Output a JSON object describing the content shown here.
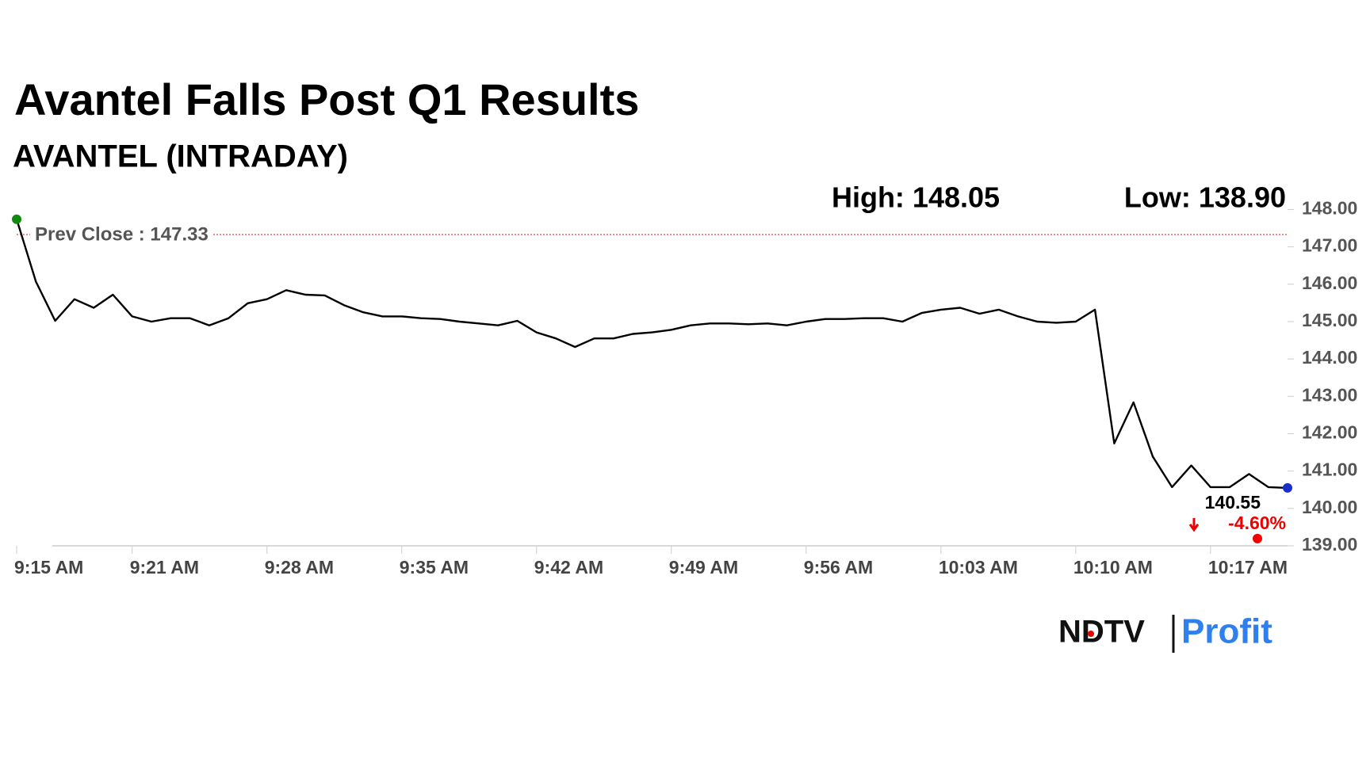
{
  "chart_data": {
    "type": "line",
    "title": "Avantel Falls Post Q1 Results",
    "subtitle": "AVANTEL (INTRADAY)",
    "high_label": "High: 148.05",
    "low_label": "Low: 138.90",
    "prev_close": 147.33,
    "prev_close_label": "Prev Close : 147.33",
    "last_label": "140.55",
    "change_label": "-4.60%",
    "x": [
      "9:15 AM",
      "9:16 AM",
      "9:17 AM",
      "9:18 AM",
      "9:19 AM",
      "9:20 AM",
      "9:21 AM",
      "9:22 AM",
      "9:23 AM",
      "9:24 AM",
      "9:25 AM",
      "9:26 AM",
      "9:27 AM",
      "9:28 AM",
      "9:29 AM",
      "9:30 AM",
      "9:31 AM",
      "9:32 AM",
      "9:33 AM",
      "9:34 AM",
      "9:35 AM",
      "9:36 AM",
      "9:37 AM",
      "9:38 AM",
      "9:39 AM",
      "9:40 AM",
      "9:41 AM",
      "9:42 AM",
      "9:43 AM",
      "9:44 AM",
      "9:45 AM",
      "9:46 AM",
      "9:47 AM",
      "9:48 AM",
      "9:49 AM",
      "9:50 AM",
      "9:51 AM",
      "9:52 AM",
      "9:53 AM",
      "9:54 AM",
      "9:55 AM",
      "9:56 AM",
      "9:57 AM",
      "9:58 AM",
      "9:59 AM",
      "10:00 AM",
      "10:01 AM",
      "10:02 AM",
      "10:03 AM",
      "10:04 AM",
      "10:05 AM",
      "10:06 AM",
      "10:07 AM",
      "10:08 AM",
      "10:09 AM",
      "10:10 AM",
      "10:11 AM",
      "10:12 AM",
      "10:13 AM",
      "10:14 AM",
      "10:15 AM",
      "10:16 AM",
      "10:17 AM",
      "10:18 AM",
      "10:19 AM",
      "10:20 AM",
      "10:21 AM"
    ],
    "series": [
      {
        "name": "AVANTEL",
        "color": "#000000",
        "values": [
          147.74,
          146.07,
          145.02,
          145.6,
          145.37,
          145.72,
          145.14,
          145.0,
          145.09,
          145.09,
          144.9,
          145.09,
          145.49,
          145.6,
          145.84,
          145.72,
          145.7,
          145.44,
          145.25,
          145.14,
          145.14,
          145.09,
          145.07,
          145.0,
          144.95,
          144.9,
          145.02,
          144.71,
          144.55,
          144.32,
          144.55,
          144.55,
          144.67,
          144.71,
          144.78,
          144.9,
          144.95,
          144.95,
          144.93,
          144.95,
          144.9,
          145.0,
          145.07,
          145.07,
          145.09,
          145.09,
          145.0,
          145.23,
          145.32,
          145.37,
          145.21,
          145.32,
          145.14,
          145.0,
          144.97,
          145.0,
          145.32,
          141.74,
          142.84,
          141.39,
          140.57,
          141.15,
          140.57,
          140.57,
          140.92,
          140.57,
          140.55
        ]
      }
    ],
    "xlim": [
      "9:15 AM",
      "10:21 AM"
    ],
    "xticks": [
      "9:15 AM",
      "9:21 AM",
      "9:28 AM",
      "9:35 AM",
      "9:42 AM",
      "9:49 AM",
      "9:56 AM",
      "10:03 AM",
      "10:10 AM",
      "10:17 AM"
    ],
    "ylim": [
      139,
      148.2
    ],
    "yticks": [
      {
        "value": 139,
        "label": "139.00"
      },
      {
        "value": 140,
        "label": "140.00"
      },
      {
        "value": 141,
        "label": "141.00"
      },
      {
        "value": 142,
        "label": "142.00"
      },
      {
        "value": 143,
        "label": "143.00"
      },
      {
        "value": 144,
        "label": "144.00"
      },
      {
        "value": 145,
        "label": "145.00"
      },
      {
        "value": 146,
        "label": "146.00"
      },
      {
        "value": 147,
        "label": "147.00"
      },
      {
        "value": 148,
        "label": "148.00"
      }
    ]
  },
  "logo": {
    "brand": "NDTV",
    "product": "Profit"
  }
}
